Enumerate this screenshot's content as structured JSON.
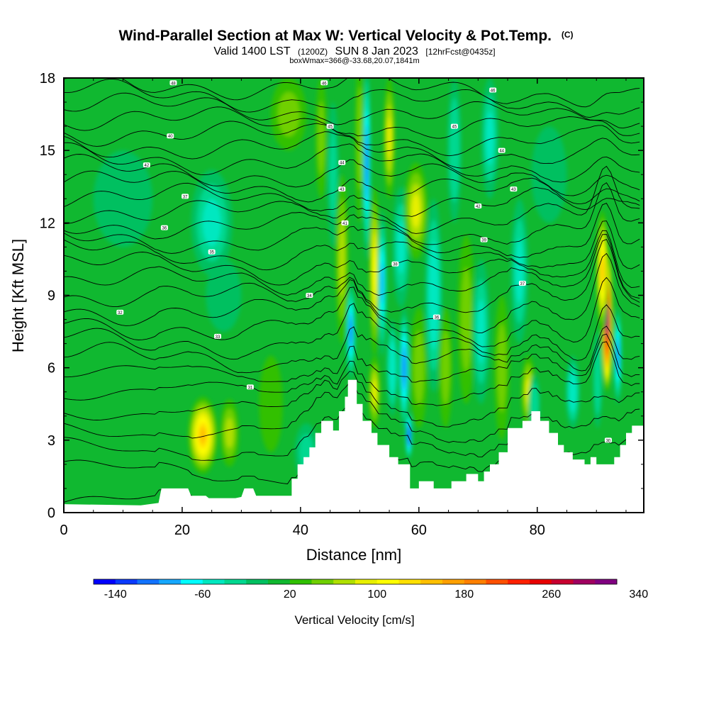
{
  "chart_data": {
    "type": "heatmap",
    "title": "Wind-Parallel Section at Max W: Vertical Velocity & Pot.Temp.",
    "title_mark": "(C)",
    "subtitle_valid": "Valid 1400 LST",
    "subtitle_utc": "(1200Z)",
    "subtitle_date": "SUN 8 Jan 2023",
    "subtitle_fcst": "[12hrFcst@0435z]",
    "box_info": "boxWmax=366@-33.68,20.07,1841m",
    "xlabel": "Distance [nm]",
    "ylabel": "Height [Kft MSL]",
    "xlim": [
      0,
      98
    ],
    "ylim": [
      0,
      18
    ],
    "xticks": [
      0,
      20,
      40,
      60,
      80
    ],
    "yticks": [
      0,
      3,
      6,
      9,
      12,
      15,
      18
    ],
    "background_value": 10,
    "cells": [
      {
        "x": 23.5,
        "y": 3.2,
        "sx": 2.5,
        "sy": 1.6,
        "v": 150
      },
      {
        "x": 28.0,
        "y": 3.3,
        "sx": 1.6,
        "sy": 1.4,
        "v": 75
      },
      {
        "x": 25.0,
        "y": 12.0,
        "sx": 3.5,
        "sy": 2.2,
        "v": -55
      },
      {
        "x": 27.0,
        "y": 9.0,
        "sx": 3.0,
        "sy": 1.5,
        "v": -20
      },
      {
        "x": 10.0,
        "y": 13.0,
        "sx": 5.0,
        "sy": 2.0,
        "v": -15
      },
      {
        "x": 35.0,
        "y": 4.5,
        "sx": 2.0,
        "sy": 2.0,
        "v": 25
      },
      {
        "x": 41.0,
        "y": 2.5,
        "sx": 2.0,
        "sy": 1.2,
        "v": -30
      },
      {
        "x": 38.0,
        "y": 16.5,
        "sx": 3.0,
        "sy": 1.5,
        "v": 45
      },
      {
        "x": 43.5,
        "y": 15.5,
        "sx": 1.0,
        "sy": 2.5,
        "v": 55
      },
      {
        "x": 45.5,
        "y": 14.0,
        "sx": 1.0,
        "sy": 3.0,
        "v": -25
      },
      {
        "x": 47.0,
        "y": 10.5,
        "sx": 1.1,
        "sy": 3.5,
        "v": 60
      },
      {
        "x": 48.5,
        "y": 7.5,
        "sx": 0.8,
        "sy": 2.0,
        "v": -110
      },
      {
        "x": 50.0,
        "y": 15.5,
        "sx": 0.8,
        "sy": 3.5,
        "v": 55
      },
      {
        "x": 51.2,
        "y": 14.5,
        "sx": 0.7,
        "sy": 4.0,
        "v": -115
      },
      {
        "x": 52.5,
        "y": 10.0,
        "sx": 0.9,
        "sy": 3.5,
        "v": 110
      },
      {
        "x": 52.5,
        "y": 5.0,
        "sx": 1.0,
        "sy": 1.5,
        "v": 90
      },
      {
        "x": 53.8,
        "y": 9.5,
        "sx": 0.8,
        "sy": 3.0,
        "v": -90
      },
      {
        "x": 55.0,
        "y": 15.5,
        "sx": 1.0,
        "sy": 2.5,
        "v": 80
      },
      {
        "x": 55.5,
        "y": 6.0,
        "sx": 1.0,
        "sy": 2.0,
        "v": -60
      },
      {
        "x": 57.5,
        "y": 6.0,
        "sx": 0.9,
        "sy": 2.5,
        "v": -110
      },
      {
        "x": 58.3,
        "y": 3.2,
        "sx": 0.6,
        "sy": 1.0,
        "v": -150
      },
      {
        "x": 57.0,
        "y": 11.0,
        "sx": 1.5,
        "sy": 2.5,
        "v": -45
      },
      {
        "x": 59.5,
        "y": 12.5,
        "sx": 2.0,
        "sy": 2.0,
        "v": 80
      },
      {
        "x": 60.0,
        "y": 6.0,
        "sx": 1.5,
        "sy": 2.5,
        "v": 55
      },
      {
        "x": 62.5,
        "y": 9.0,
        "sx": 1.5,
        "sy": 4.0,
        "v": -60
      },
      {
        "x": 64.5,
        "y": 6.0,
        "sx": 1.2,
        "sy": 2.5,
        "v": 40
      },
      {
        "x": 66.0,
        "y": 15.0,
        "sx": 1.2,
        "sy": 3.0,
        "v": -40
      },
      {
        "x": 68.0,
        "y": 8.0,
        "sx": 1.5,
        "sy": 3.5,
        "v": 45
      },
      {
        "x": 70.5,
        "y": 7.5,
        "sx": 1.5,
        "sy": 3.0,
        "v": -55
      },
      {
        "x": 72.0,
        "y": 15.5,
        "sx": 1.5,
        "sy": 2.5,
        "v": -45
      },
      {
        "x": 74.0,
        "y": 6.0,
        "sx": 1.3,
        "sy": 3.0,
        "v": 50
      },
      {
        "x": 77.0,
        "y": 10.0,
        "sx": 1.5,
        "sy": 3.0,
        "v": -50
      },
      {
        "x": 78.5,
        "y": 5.0,
        "sx": 1.2,
        "sy": 1.5,
        "v": 90
      },
      {
        "x": 79.5,
        "y": 4.5,
        "sx": 1.0,
        "sy": 1.2,
        "v": -40
      },
      {
        "x": 86.0,
        "y": 5.0,
        "sx": 1.2,
        "sy": 1.5,
        "v": -60
      },
      {
        "x": 82.0,
        "y": 14.0,
        "sx": 3.0,
        "sy": 2.0,
        "v": -20
      },
      {
        "x": 91.8,
        "y": 8.0,
        "sx": 0.9,
        "sy": 3.0,
        "v": 340
      },
      {
        "x": 91.0,
        "y": 10.0,
        "sx": 1.0,
        "sy": 2.5,
        "v": 150
      },
      {
        "x": 93.6,
        "y": 6.5,
        "sx": 0.7,
        "sy": 2.0,
        "v": -110
      },
      {
        "x": 90.2,
        "y": 5.5,
        "sx": 0.8,
        "sy": 2.0,
        "v": -40
      }
    ],
    "terrain": [
      [
        0,
        0.35
      ],
      [
        13,
        0.3
      ],
      [
        16,
        0.4
      ],
      [
        16.5,
        1.0
      ],
      [
        21,
        1.0
      ],
      [
        21.5,
        0.7
      ],
      [
        24,
        0.7
      ],
      [
        24.5,
        0.6
      ],
      [
        29,
        0.6
      ],
      [
        30,
        0.65
      ],
      [
        30.5,
        1.0
      ],
      [
        32,
        1.0
      ],
      [
        32.5,
        0.7
      ],
      [
        38.5,
        0.7
      ],
      [
        38.5,
        1.4
      ],
      [
        39.5,
        1.4
      ],
      [
        39.5,
        2.0
      ],
      [
        40.5,
        2.0
      ],
      [
        40.5,
        2.3
      ],
      [
        41.5,
        2.3
      ],
      [
        41.5,
        2.7
      ],
      [
        42.5,
        2.7
      ],
      [
        42.5,
        3.3
      ],
      [
        43.5,
        3.3
      ],
      [
        43.5,
        3.8
      ],
      [
        45.5,
        3.8
      ],
      [
        45.5,
        3.4
      ],
      [
        46.5,
        3.4
      ],
      [
        46.5,
        4.2
      ],
      [
        47.5,
        4.2
      ],
      [
        47.5,
        4.8
      ],
      [
        48.0,
        4.8
      ],
      [
        48.0,
        5.5
      ],
      [
        49.5,
        5.5
      ],
      [
        49.5,
        4.5
      ],
      [
        50.5,
        4.5
      ],
      [
        50.5,
        3.8
      ],
      [
        52.0,
        3.8
      ],
      [
        52.0,
        3.3
      ],
      [
        53.0,
        3.3
      ],
      [
        53.0,
        2.8
      ],
      [
        55.0,
        2.8
      ],
      [
        55.0,
        2.3
      ],
      [
        56.5,
        2.3
      ],
      [
        56.5,
        2.0
      ],
      [
        58.5,
        2.0
      ],
      [
        58.5,
        1.0
      ],
      [
        60.0,
        1.0
      ],
      [
        60.0,
        1.3
      ],
      [
        62.5,
        1.3
      ],
      [
        62.5,
        1.0
      ],
      [
        65.5,
        1.0
      ],
      [
        65.5,
        1.3
      ],
      [
        68.0,
        1.3
      ],
      [
        68.0,
        1.6
      ],
      [
        70.0,
        1.6
      ],
      [
        70.0,
        1.3
      ],
      [
        71.0,
        1.3
      ],
      [
        71.0,
        1.7
      ],
      [
        72.0,
        1.7
      ],
      [
        72.0,
        2.0
      ],
      [
        73.5,
        2.0
      ],
      [
        73.5,
        2.5
      ],
      [
        75.0,
        2.5
      ],
      [
        75.0,
        3.5
      ],
      [
        77.5,
        3.5
      ],
      [
        77.5,
        3.8
      ],
      [
        79.0,
        3.8
      ],
      [
        79.0,
        4.2
      ],
      [
        80.5,
        4.2
      ],
      [
        80.5,
        3.8
      ],
      [
        82.0,
        3.8
      ],
      [
        82.0,
        3.3
      ],
      [
        83.5,
        3.3
      ],
      [
        83.5,
        2.8
      ],
      [
        84.5,
        2.8
      ],
      [
        84.5,
        2.5
      ],
      [
        86.0,
        2.5
      ],
      [
        86.0,
        2.2
      ],
      [
        88.0,
        2.2
      ],
      [
        88.0,
        2.0
      ],
      [
        89.0,
        2.0
      ],
      [
        89.0,
        2.3
      ],
      [
        90.0,
        2.3
      ],
      [
        90.0,
        2.0
      ],
      [
        93.0,
        2.0
      ],
      [
        93.0,
        2.3
      ],
      [
        94.0,
        2.3
      ],
      [
        94.0,
        2.8
      ],
      [
        95.0,
        2.8
      ],
      [
        95.0,
        3.3
      ],
      [
        96.0,
        3.3
      ],
      [
        96.0,
        3.6
      ],
      [
        98,
        3.6
      ]
    ],
    "theta_level_count": 28,
    "contour_labels": [
      {
        "x": 18.5,
        "y": 17.8,
        "text": "48"
      },
      {
        "x": 18.0,
        "y": 15.6,
        "text": "40"
      },
      {
        "x": 14.0,
        "y": 14.4,
        "text": "42"
      },
      {
        "x": 20.5,
        "y": 13.1,
        "text": "37"
      },
      {
        "x": 17.0,
        "y": 11.8,
        "text": "36"
      },
      {
        "x": 25.0,
        "y": 10.8,
        "text": "35"
      },
      {
        "x": 9.5,
        "y": 8.3,
        "text": "32"
      },
      {
        "x": 26.0,
        "y": 7.3,
        "text": "33"
      },
      {
        "x": 31.5,
        "y": 5.2,
        "text": "31"
      },
      {
        "x": 41.5,
        "y": 9.0,
        "text": "34"
      },
      {
        "x": 44.0,
        "y": 17.8,
        "text": "46"
      },
      {
        "x": 45.0,
        "y": 16.0,
        "text": "45"
      },
      {
        "x": 47.0,
        "y": 14.5,
        "text": "44"
      },
      {
        "x": 47.0,
        "y": 13.4,
        "text": "43"
      },
      {
        "x": 47.5,
        "y": 12.0,
        "text": "41"
      },
      {
        "x": 56.0,
        "y": 10.3,
        "text": "38"
      },
      {
        "x": 63.0,
        "y": 8.1,
        "text": "36"
      },
      {
        "x": 72.5,
        "y": 17.5,
        "text": "46"
      },
      {
        "x": 66.0,
        "y": 16.0,
        "text": "45"
      },
      {
        "x": 74.0,
        "y": 15.0,
        "text": "44"
      },
      {
        "x": 76.0,
        "y": 13.4,
        "text": "43"
      },
      {
        "x": 70.0,
        "y": 12.7,
        "text": "42"
      },
      {
        "x": 71.0,
        "y": 11.3,
        "text": "39"
      },
      {
        "x": 77.5,
        "y": 9.5,
        "text": "37"
      },
      {
        "x": 92.0,
        "y": 3.0,
        "text": "30"
      }
    ],
    "colorbar": {
      "label": "Vertical Velocity [cm/s]",
      "ticks": [
        "-140",
        "-60",
        "20",
        "100",
        "180",
        "260",
        "340"
      ],
      "colors": [
        "#0000ff",
        "#0a3aff",
        "#1273ff",
        "#16a8ff",
        "#00ffff",
        "#00e8c0",
        "#00d890",
        "#00c060",
        "#10b830",
        "#30c000",
        "#70d000",
        "#b0e000",
        "#e8f000",
        "#ffff00",
        "#ffe000",
        "#ffc000",
        "#ffa000",
        "#ff8000",
        "#ff5000",
        "#ff2000",
        "#e80000",
        "#c80030",
        "#a00060",
        "#800080"
      ]
    }
  }
}
